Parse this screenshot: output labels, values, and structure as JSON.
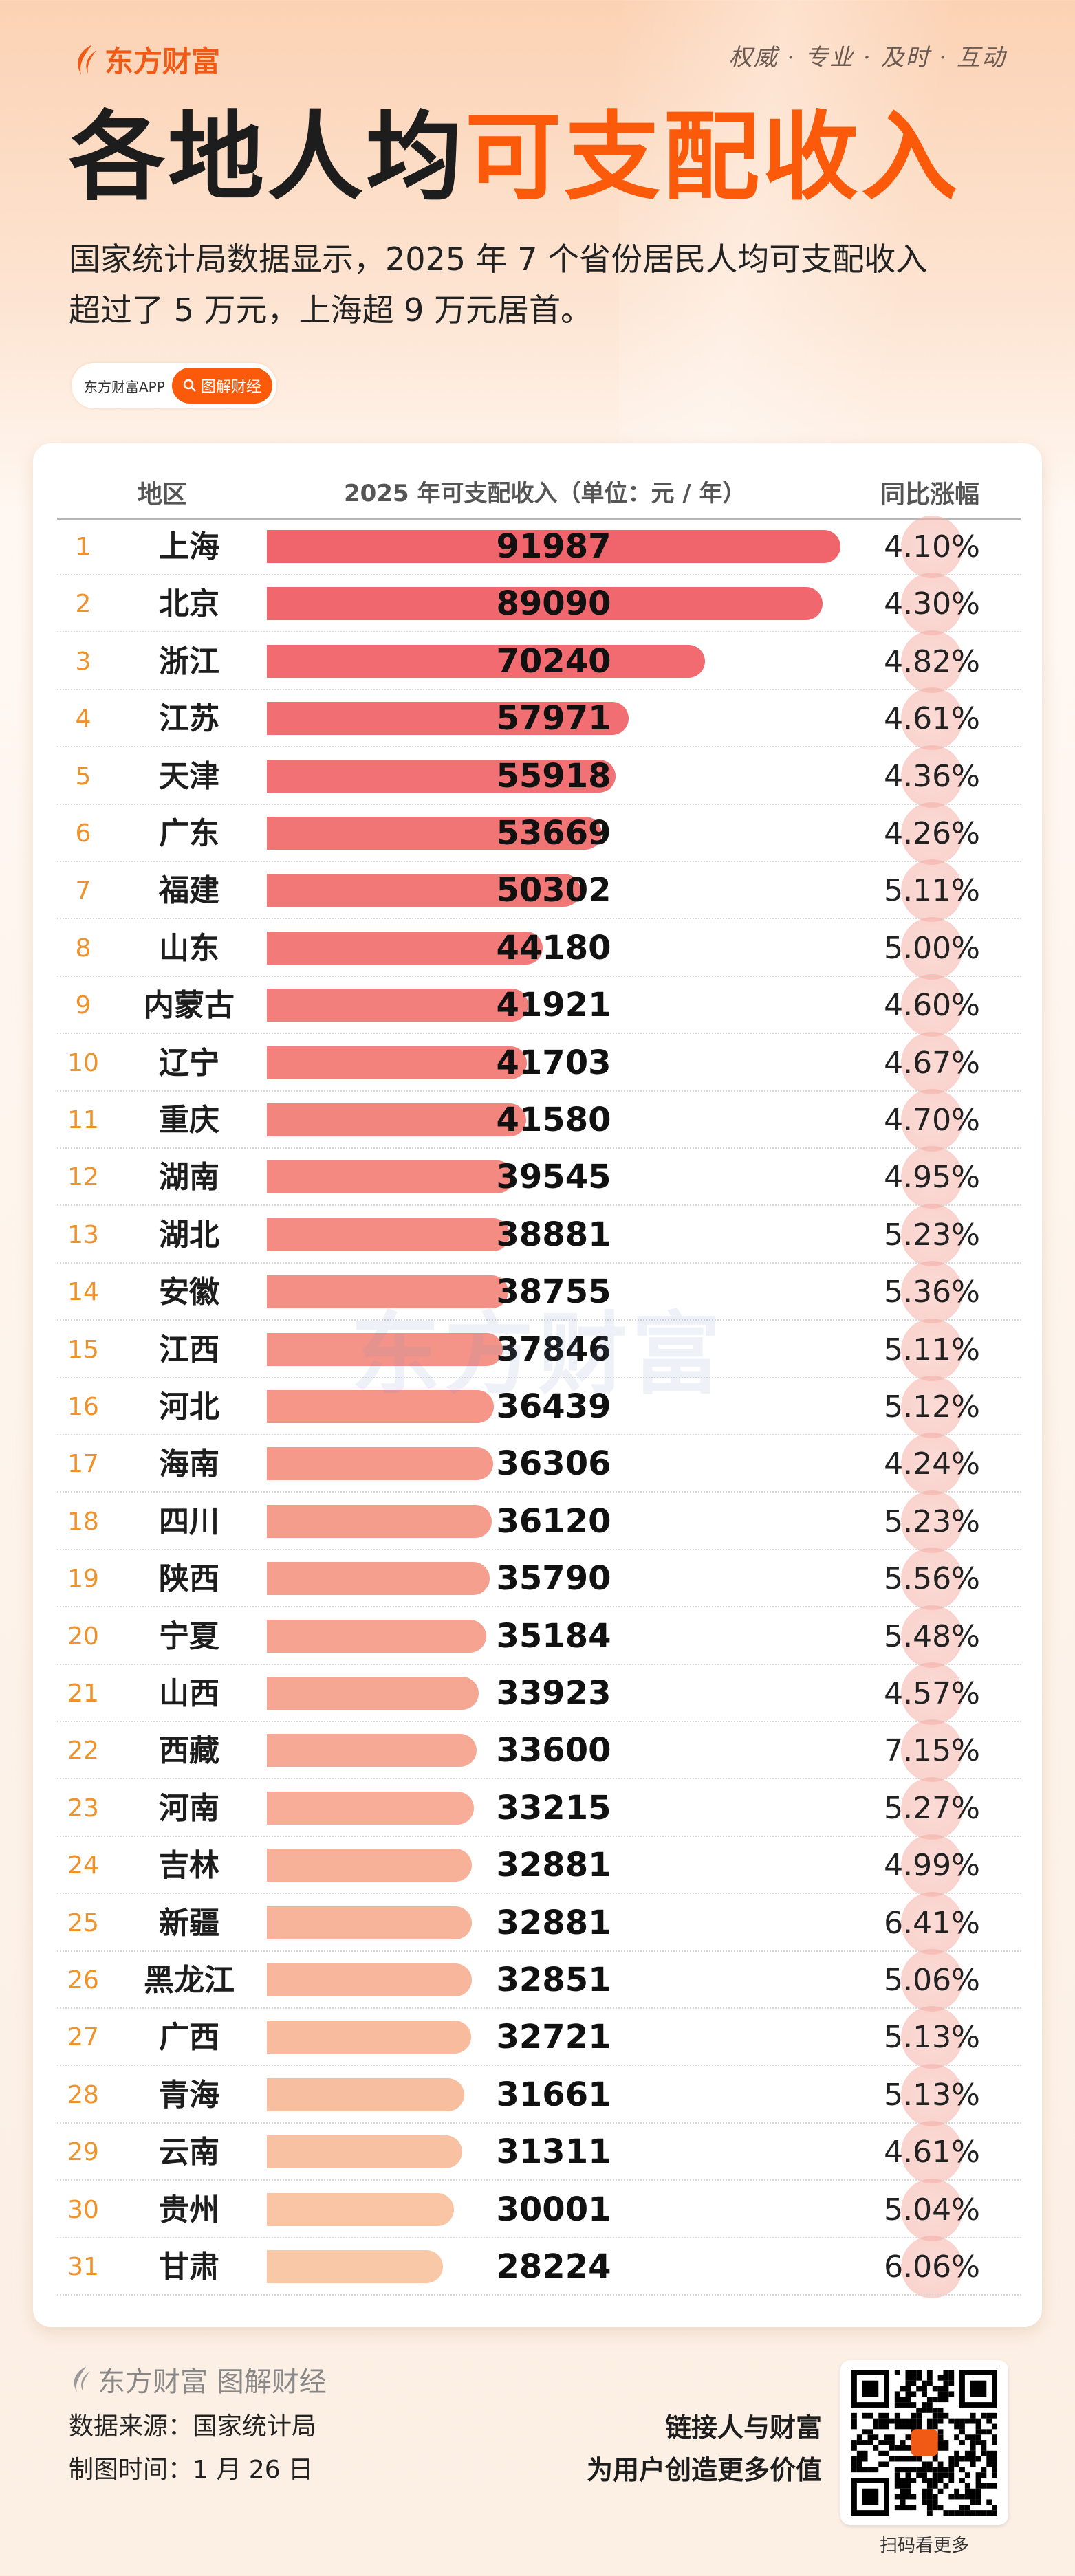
{
  "brand": {
    "name": "东方财富",
    "color": "#f05a14",
    "slogan": "权威 · 专业 · 及时 · 互动"
  },
  "title": {
    "part1": "各地人均",
    "part2": "可支配收入",
    "accent": "#fb5a0a"
  },
  "subtitle": {
    "line1": "国家统计局数据显示，2025 年 7 个省份居民人均可支配收入",
    "line2": "超过了 5 万元，上海超 9 万元居首。"
  },
  "pill": {
    "app": "东方财富APP",
    "search_icon": "search-icon",
    "label": "图解财经"
  },
  "table": {
    "headers": {
      "region": "地区",
      "income": "2025 年可支配收入（单位：元 / 年）",
      "growth": "同比涨幅"
    },
    "watermark": "东方财富",
    "bar_color_top": "#f0646c",
    "bar_color_bottom": "#f9c8a6",
    "rows": [
      {
        "rank": "1",
        "region": "上海",
        "income": 91987,
        "growth": "4.10%"
      },
      {
        "rank": "2",
        "region": "北京",
        "income": 89090,
        "growth": "4.30%"
      },
      {
        "rank": "3",
        "region": "浙江",
        "income": 70240,
        "growth": "4.82%"
      },
      {
        "rank": "4",
        "region": "江苏",
        "income": 57971,
        "growth": "4.61%"
      },
      {
        "rank": "5",
        "region": "天津",
        "income": 55918,
        "growth": "4.36%"
      },
      {
        "rank": "6",
        "region": "广东",
        "income": 53669,
        "growth": "4.26%"
      },
      {
        "rank": "7",
        "region": "福建",
        "income": 50302,
        "growth": "5.11%"
      },
      {
        "rank": "8",
        "region": "山东",
        "income": 44180,
        "growth": "5.00%"
      },
      {
        "rank": "9",
        "region": "内蒙古",
        "income": 41921,
        "growth": "4.60%"
      },
      {
        "rank": "10",
        "region": "辽宁",
        "income": 41703,
        "growth": "4.67%"
      },
      {
        "rank": "11",
        "region": "重庆",
        "income": 41580,
        "growth": "4.70%"
      },
      {
        "rank": "12",
        "region": "湖南",
        "income": 39545,
        "growth": "4.95%"
      },
      {
        "rank": "13",
        "region": "湖北",
        "income": 38881,
        "growth": "5.23%"
      },
      {
        "rank": "14",
        "region": "安徽",
        "income": 38755,
        "growth": "5.36%"
      },
      {
        "rank": "15",
        "region": "江西",
        "income": 37846,
        "growth": "5.11%"
      },
      {
        "rank": "16",
        "region": "河北",
        "income": 36439,
        "growth": "5.12%"
      },
      {
        "rank": "17",
        "region": "海南",
        "income": 36306,
        "growth": "4.24%"
      },
      {
        "rank": "18",
        "region": "四川",
        "income": 36120,
        "growth": "5.23%"
      },
      {
        "rank": "19",
        "region": "陕西",
        "income": 35790,
        "growth": "5.56%"
      },
      {
        "rank": "20",
        "region": "宁夏",
        "income": 35184,
        "growth": "5.48%"
      },
      {
        "rank": "21",
        "region": "山西",
        "income": 33923,
        "growth": "4.57%"
      },
      {
        "rank": "22",
        "region": "西藏",
        "income": 33600,
        "growth": "7.15%"
      },
      {
        "rank": "23",
        "region": "河南",
        "income": 33215,
        "growth": "5.27%"
      },
      {
        "rank": "24",
        "region": "吉林",
        "income": 32881,
        "growth": "4.99%"
      },
      {
        "rank": "25",
        "region": "新疆",
        "income": 32881,
        "growth": "6.41%"
      },
      {
        "rank": "26",
        "region": "黑龙江",
        "income": 32851,
        "growth": "5.06%"
      },
      {
        "rank": "27",
        "region": "广西",
        "income": 32721,
        "growth": "5.13%"
      },
      {
        "rank": "28",
        "region": "青海",
        "income": 31661,
        "growth": "5.13%"
      },
      {
        "rank": "29",
        "region": "云南",
        "income": 31311,
        "growth": "4.61%"
      },
      {
        "rank": "30",
        "region": "贵州",
        "income": 30001,
        "growth": "5.04%"
      },
      {
        "rank": "31",
        "region": "甘肃",
        "income": 28224,
        "growth": "6.06%"
      }
    ]
  },
  "footer": {
    "brand": "东方财富 图解财经",
    "source": "数据来源：国家统计局",
    "date": "制图时间：1 月 26 日",
    "tagline1": "链接人与财富",
    "tagline2": "为用户创造更多价值",
    "qr_caption": "扫码看更多"
  }
}
